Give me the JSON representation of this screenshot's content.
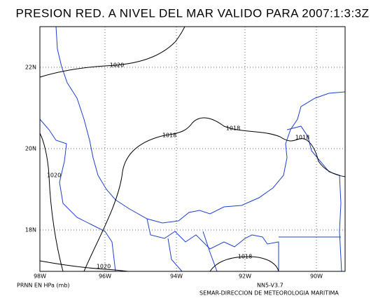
{
  "header": {
    "title": "PRESION RED. A NIVEL DEL MAR VALIDO PARA 2007:1:3:3Z"
  },
  "axes": {
    "lat_labels": [
      "22N",
      "20N",
      "18N"
    ],
    "lon_labels": [
      "98W",
      "96W",
      "94W",
      "92W",
      "90W"
    ]
  },
  "contour_labels": [
    "1020",
    "1018",
    "1018",
    "1018",
    "1020",
    "1018",
    "1020"
  ],
  "footer": {
    "units": "PRNN EN HPa (mb)",
    "version": "NN5-V3.7",
    "credit": "SEMAR-DIRECCION DE METEOROLOGIA MARITIMA"
  }
}
